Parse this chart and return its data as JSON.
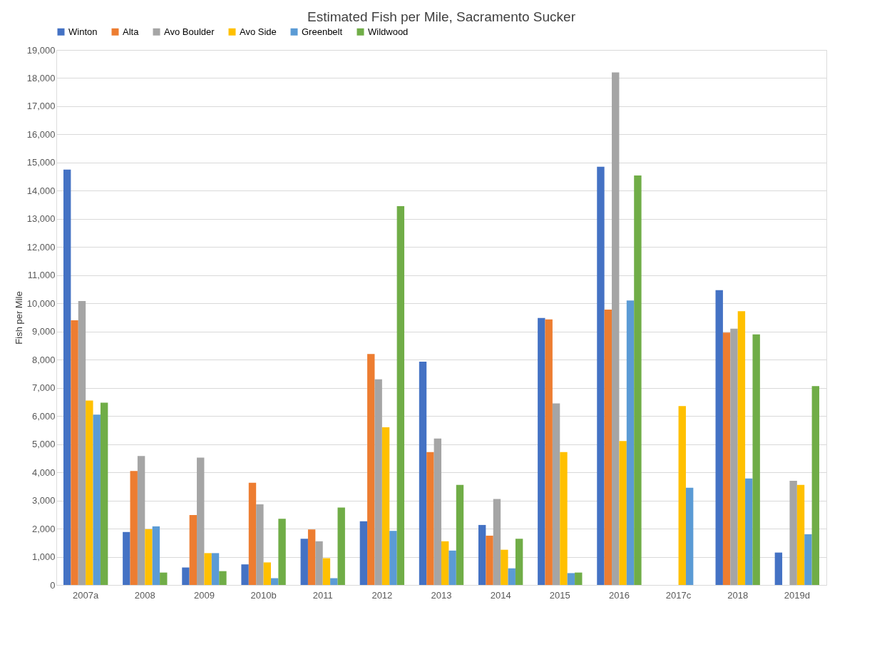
{
  "chart_data": {
    "type": "bar",
    "title": "Estimated Fish per Mile, Sacramento Sucker",
    "ylabel": "Fish per Mile",
    "categories": [
      "2007a",
      "2008",
      "2009",
      "2010b",
      "2011",
      "2012",
      "2013",
      "2014",
      "2015",
      "2016",
      "2017c",
      "2018",
      "2019d"
    ],
    "series": [
      {
        "name": "Winton",
        "color": "#4472c4",
        "values": [
          14750,
          1880,
          620,
          730,
          1640,
          2260,
          7930,
          2130,
          9480,
          14850,
          null,
          10470,
          1150
        ]
      },
      {
        "name": "Alta",
        "color": "#ed7d31",
        "values": [
          9400,
          4050,
          2480,
          3630,
          1970,
          8200,
          4720,
          1750,
          9430,
          9780,
          null,
          8960,
          null
        ]
      },
      {
        "name": "Avo Boulder",
        "color": "#a5a5a5",
        "values": [
          10080,
          4580,
          4520,
          2860,
          1550,
          7300,
          5200,
          3050,
          6450,
          18200,
          null,
          9100,
          3700
        ]
      },
      {
        "name": "Avo Side",
        "color": "#ffc000",
        "values": [
          6550,
          1980,
          1130,
          800,
          950,
          5600,
          1550,
          1250,
          4720,
          5110,
          6350,
          9720,
          3550
        ]
      },
      {
        "name": "Greenbelt",
        "color": "#5b9bd5",
        "values": [
          6050,
          2080,
          1130,
          240,
          240,
          1920,
          1220,
          590,
          420,
          10100,
          3450,
          3780,
          1800
        ]
      },
      {
        "name": "Wildwood",
        "color": "#70ad47",
        "values": [
          6470,
          440,
          490,
          2350,
          2750,
          13450,
          3550,
          1640,
          440,
          14540,
          null,
          8900,
          7060
        ]
      }
    ],
    "ylim": [
      0,
      19000
    ],
    "yticks": [
      0,
      {
        "value": 1000,
        "label": "1,000"
      },
      {
        "value": 2000,
        "label": "2,000"
      },
      {
        "value": 3000,
        "label": "3,000"
      },
      {
        "value": 4000,
        "label": "4,000"
      },
      {
        "value": 5000,
        "label": "5,000"
      },
      {
        "value": 6000,
        "label": "6,000"
      },
      {
        "value": 7000,
        "label": "7,000"
      },
      {
        "value": 8000,
        "label": "8,000"
      },
      {
        "value": 9000,
        "label": "9,000"
      },
      {
        "value": 10000,
        "label": "10,000"
      },
      {
        "value": 11000,
        "label": "11,000"
      },
      {
        "value": 12000,
        "label": "12,000"
      },
      {
        "value": 13000,
        "label": "13,000"
      },
      {
        "value": 14000,
        "label": "14,000"
      },
      {
        "value": 15000,
        "label": "15,000"
      },
      {
        "value": 16000,
        "label": "16,000"
      },
      {
        "value": 17000,
        "label": "17,000"
      },
      {
        "value": 18000,
        "label": "18,000"
      },
      {
        "value": 19000,
        "label": "19,000"
      }
    ],
    "grid": "y",
    "legend": "top"
  }
}
